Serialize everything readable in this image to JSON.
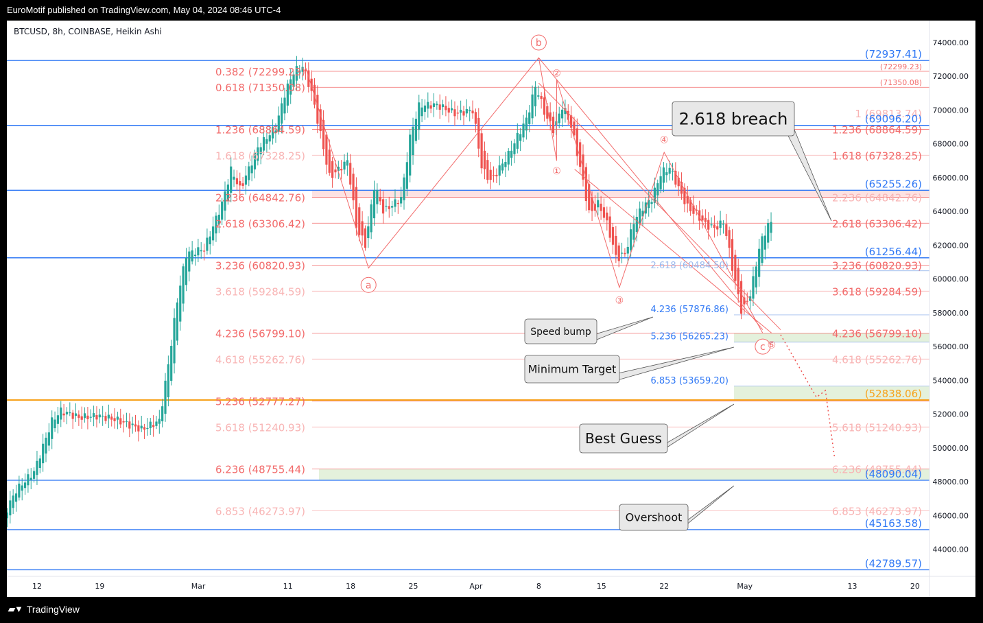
{
  "header": {
    "published": "EuroMotif published on TradingView.com, May 04, 2024 08:46 UTC-4"
  },
  "footer": {
    "brand": "TradingView",
    "logo_icon": "tradingview-logo-icon"
  },
  "colors": {
    "up": "#26a69a",
    "down": "#ef5350",
    "fib_strong": "#f26b6b",
    "fib_faint": "#f8b4b4",
    "blue": "#3179f5",
    "orange": "#f7a21b",
    "zone": "#e4f1dc",
    "pink_zone": "#fde2e2"
  },
  "chart_data": {
    "type": "candlestick",
    "symbol_label": "BTCUSD, 8h, COINBASE, Heikin Ashi",
    "y_range": [
      42400,
      75300
    ],
    "y_ticks": [
      "74000.00",
      "72000.00",
      "70000.00",
      "68000.00",
      "66000.00",
      "64000.00",
      "62000.00",
      "60000.00",
      "58000.00",
      "56000.00",
      "54000.00",
      "52000.00",
      "50000.00",
      "48000.00",
      "46000.00",
      "44000.00"
    ],
    "x_labels": [
      "12",
      "19",
      "Mar",
      "11",
      "18",
      "25",
      "Apr",
      "8",
      "15",
      "22",
      "May",
      "13",
      "20"
    ],
    "x_label_dates": [
      "2024-02-12",
      "2024-02-19",
      "2024-03-01",
      "2024-03-11",
      "2024-03-18",
      "2024-03-25",
      "2024-04-01",
      "2024-04-08",
      "2024-04-15",
      "2024-04-22",
      "2024-05-01",
      "2024-05-13",
      "2024-05-20"
    ],
    "price_path": [
      [
        "2024-02-08",
        45300
      ],
      [
        "2024-02-10",
        47500
      ],
      [
        "2024-02-12",
        48600
      ],
      [
        "2024-02-14",
        51600
      ],
      [
        "2024-02-15",
        52200
      ],
      [
        "2024-02-17",
        51800
      ],
      [
        "2024-02-19",
        51900
      ],
      [
        "2024-02-21",
        51700
      ],
      [
        "2024-02-24",
        51100
      ],
      [
        "2024-02-26",
        51600
      ],
      [
        "2024-02-27",
        55000
      ],
      [
        "2024-02-28",
        58800
      ],
      [
        "2024-02-29",
        61500
      ],
      [
        "2024-03-02",
        61800
      ],
      [
        "2024-03-04",
        64500
      ],
      [
        "2024-03-05",
        66500
      ],
      [
        "2024-03-06",
        65300
      ],
      [
        "2024-03-08",
        67800
      ],
      [
        "2024-03-10",
        69000
      ],
      [
        "2024-03-11",
        71000
      ],
      [
        "2024-03-12",
        72300
      ],
      [
        "2024-03-13",
        72600
      ],
      [
        "2024-03-14",
        71000
      ],
      [
        "2024-03-15",
        68500
      ],
      [
        "2024-03-16",
        66000
      ],
      [
        "2024-03-18",
        67000
      ],
      [
        "2024-03-19",
        63000
      ],
      [
        "2024-03-20",
        62000
      ],
      [
        "2024-03-21",
        65600
      ],
      [
        "2024-03-22",
        64000
      ],
      [
        "2024-03-24",
        64800
      ],
      [
        "2024-03-25",
        68500
      ],
      [
        "2024-03-26",
        70300
      ],
      [
        "2024-03-28",
        70300
      ],
      [
        "2024-03-30",
        69800
      ],
      [
        "2024-04-01",
        70000
      ],
      [
        "2024-04-02",
        66500
      ],
      [
        "2024-04-03",
        65800
      ],
      [
        "2024-04-05",
        67400
      ],
      [
        "2024-04-06",
        68500
      ],
      [
        "2024-04-07",
        69500
      ],
      [
        "2024-04-08",
        71500
      ],
      [
        "2024-04-09",
        69800
      ],
      [
        "2024-04-10",
        68800
      ],
      [
        "2024-04-11",
        70300
      ],
      [
        "2024-04-12",
        69000
      ],
      [
        "2024-04-13",
        66500
      ],
      [
        "2024-04-14",
        63800
      ],
      [
        "2024-04-15",
        64500
      ],
      [
        "2024-04-16",
        63200
      ],
      [
        "2024-04-17",
        61200
      ],
      [
        "2024-04-18",
        61500
      ],
      [
        "2024-04-19",
        63500
      ],
      [
        "2024-04-20",
        64300
      ],
      [
        "2024-04-21",
        64800
      ],
      [
        "2024-04-22",
        66300
      ],
      [
        "2024-04-23",
        66600
      ],
      [
        "2024-04-24",
        65300
      ],
      [
        "2024-04-25",
        64200
      ],
      [
        "2024-04-26",
        63800
      ],
      [
        "2024-04-27",
        63200
      ],
      [
        "2024-04-28",
        63000
      ],
      [
        "2024-04-29",
        63400
      ],
      [
        "2024-04-30",
        60500
      ],
      [
        "2024-05-01",
        58000
      ],
      [
        "2024-05-02",
        59200
      ],
      [
        "2024-05-03",
        62000
      ],
      [
        "2024-05-04",
        63300
      ]
    ],
    "fib_levels_left": [
      {
        "label": "0.382 (72299.23)",
        "price": 72299.23,
        "style": "strong"
      },
      {
        "label": "0.618 (71350.08)",
        "price": 71350.08,
        "style": "strong"
      },
      {
        "label": "1.236 (68864.59)",
        "price": 68864.59,
        "style": "strong"
      },
      {
        "label": "1.618 (67328.25)",
        "price": 67328.25,
        "style": "faint"
      },
      {
        "label": "2.236 (64842.76)",
        "price": 64842.76,
        "style": "strong"
      },
      {
        "label": "2.618 (63306.42)",
        "price": 63306.42,
        "style": "strong"
      },
      {
        "label": "3.236 (60820.93)",
        "price": 60820.93,
        "style": "strong"
      },
      {
        "label": "3.618 (59284.59)",
        "price": 59284.59,
        "style": "faint"
      },
      {
        "label": "4.236 (56799.10)",
        "price": 56799.1,
        "style": "strong"
      },
      {
        "label": "4.618 (55262.76)",
        "price": 55262.76,
        "style": "faint"
      },
      {
        "label": "5.236 (52777.27)",
        "price": 52777.27,
        "style": "strong"
      },
      {
        "label": "5.618 (51240.93)",
        "price": 51240.93,
        "style": "faint"
      },
      {
        "label": "6.236 (48755.44)",
        "price": 48755.44,
        "style": "strong"
      },
      {
        "label": "6.853 (46273.97)",
        "price": 46273.97,
        "style": "faint"
      }
    ],
    "fib_levels_right": [
      {
        "label": "(72299.23)",
        "price": 72299.23,
        "style": "small"
      },
      {
        "label": "(71350.08)",
        "price": 71350.08,
        "style": "small"
      },
      {
        "label": "1 (69813.74)",
        "price": 69813.74,
        "style": "faint"
      },
      {
        "label": "1.236 (68864.59)",
        "price": 68864.59,
        "style": "strong"
      },
      {
        "label": "1.618 (67328.25)",
        "price": 67328.25,
        "style": "strong"
      },
      {
        "label": "2.236 (64842.76)",
        "price": 64842.76,
        "style": "faint"
      },
      {
        "label": "2.618 (63306.42)",
        "price": 63306.42,
        "style": "strong"
      },
      {
        "label": "3.236 (60820.93)",
        "price": 60820.93,
        "style": "strong"
      },
      {
        "label": "3.618 (59284.59)",
        "price": 59284.59,
        "style": "strong"
      },
      {
        "label": "4.236 (56799.10)",
        "price": 56799.1,
        "style": "strong"
      },
      {
        "label": "4.618 (55262.76)",
        "price": 55262.76,
        "style": "faint"
      },
      {
        "label": "5.618 (51240.93)",
        "price": 51240.93,
        "style": "faint"
      },
      {
        "label": "6.236 (48755.44)",
        "price": 48755.44,
        "style": "faint"
      },
      {
        "label": "6.853 (46273.97)",
        "price": 46273.97,
        "style": "faint"
      }
    ],
    "blue_levels": [
      {
        "label": "(72937.41)",
        "price": 72937.41
      },
      {
        "label": "(69096.20)",
        "price": 69096.2
      },
      {
        "label": "(65255.26)",
        "price": 65255.26
      },
      {
        "label": "(61256.44)",
        "price": 61256.44
      },
      {
        "label": "(48090.04)",
        "price": 48090.04
      },
      {
        "label": "(45163.58)",
        "price": 45163.58
      },
      {
        "label": "(42789.57)",
        "price": 42789.57
      }
    ],
    "orange_level": {
      "label": "(52838.06)",
      "price": 52838.06
    },
    "inner_fib_labels": [
      {
        "label": "2.618 (60484.50)",
        "price": 60484.5,
        "style": "faint-blue"
      },
      {
        "label": "4.236 (57876.86)",
        "price": 57876.86,
        "style": "blue"
      },
      {
        "label": "5.236 (56265.23)",
        "price": 56265.23,
        "style": "blue"
      },
      {
        "label": "6.853 (53659.20)",
        "price": 53659.2,
        "style": "blue"
      }
    ],
    "wave_labels": [
      {
        "text": "b",
        "date": "2024-04-08",
        "price": 74000,
        "circle": "large"
      },
      {
        "text": "a",
        "date": "2024-03-20",
        "price": 59650,
        "circle": "large"
      },
      {
        "text": "c",
        "date": "2024-05-03",
        "price": 56000,
        "circle": "large"
      },
      {
        "text": "②",
        "date": "2024-04-10",
        "price": 72200,
        "circle": "small"
      },
      {
        "text": "①",
        "date": "2024-04-10",
        "price": 66400,
        "circle": "small"
      },
      {
        "text": "③",
        "date": "2024-04-17",
        "price": 58750,
        "circle": "small"
      },
      {
        "text": "④",
        "date": "2024-04-22",
        "price": 68250,
        "circle": "small"
      },
      {
        "text": "⑤",
        "date": "2024-05-04",
        "price": 56100,
        "circle": "small"
      }
    ],
    "callouts": [
      {
        "text": "2.618 breach",
        "size": "large"
      },
      {
        "text": "Speed bump",
        "size": "small"
      },
      {
        "text": "Minimum Target",
        "size": "medium"
      },
      {
        "text": "Best Guess",
        "size": "large"
      },
      {
        "text": "Overshoot",
        "size": "medium"
      }
    ]
  }
}
